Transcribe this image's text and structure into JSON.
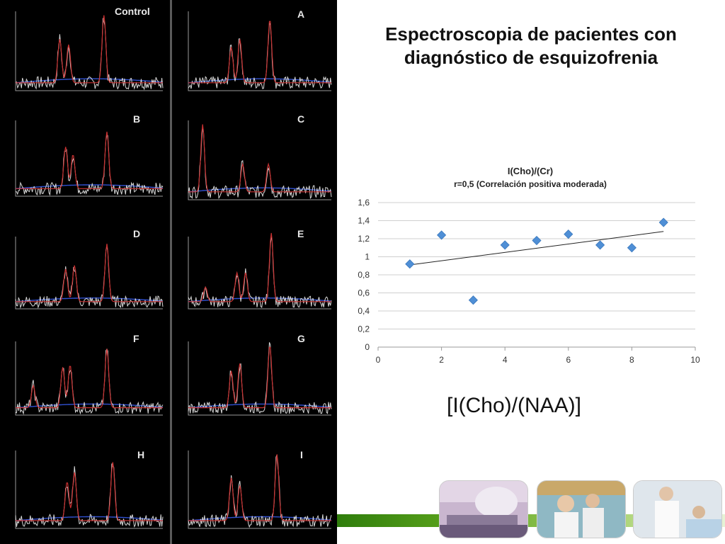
{
  "slide": {
    "title_line1": "Espectroscopia de pacientes con",
    "title_line2": "diagnóstico de esquizofrenia",
    "caption": "[I(Cho)/(NAA)]"
  },
  "spectra": [
    {
      "id": "control",
      "label": "Control"
    },
    {
      "id": "A",
      "label": "A"
    },
    {
      "id": "B",
      "label": "B"
    },
    {
      "id": "C",
      "label": "C"
    },
    {
      "id": "D",
      "label": "D"
    },
    {
      "id": "E",
      "label": "E"
    },
    {
      "id": "F",
      "label": "F"
    },
    {
      "id": "G",
      "label": "G"
    },
    {
      "id": "H",
      "label": "H"
    },
    {
      "id": "I",
      "label": "I"
    }
  ],
  "colors": {
    "spectrum_line": "#d8d8d8",
    "fit_line": "#c83030",
    "baseline": "#3050d0",
    "marker": "#4f8fd6",
    "trend": "#222222",
    "grid": "#cfcfcf"
  },
  "chart_data": {
    "type": "scatter",
    "title": "I(Cho)/(Cr)",
    "subtitle": "r=0,5 (Correlación positiva moderada)",
    "x": [
      1,
      2,
      3,
      4,
      5,
      6,
      7,
      8,
      9
    ],
    "y": [
      0.92,
      1.24,
      0.52,
      1.13,
      1.18,
      1.25,
      1.13,
      1.1,
      1.38
    ],
    "xlim": [
      0,
      10
    ],
    "ylim": [
      0,
      1.6
    ],
    "x_ticks": [
      "0",
      "2",
      "4",
      "6",
      "8",
      "10"
    ],
    "y_ticks": [
      "0",
      "0,2",
      "0,4",
      "0,6",
      "0,8",
      "1",
      "1,2",
      "1,4",
      "1,6"
    ],
    "trendline": {
      "type": "linear",
      "from": [
        1,
        0.91
      ],
      "to": [
        9,
        1.28
      ]
    },
    "grid": "horizontal",
    "legend": "none"
  }
}
